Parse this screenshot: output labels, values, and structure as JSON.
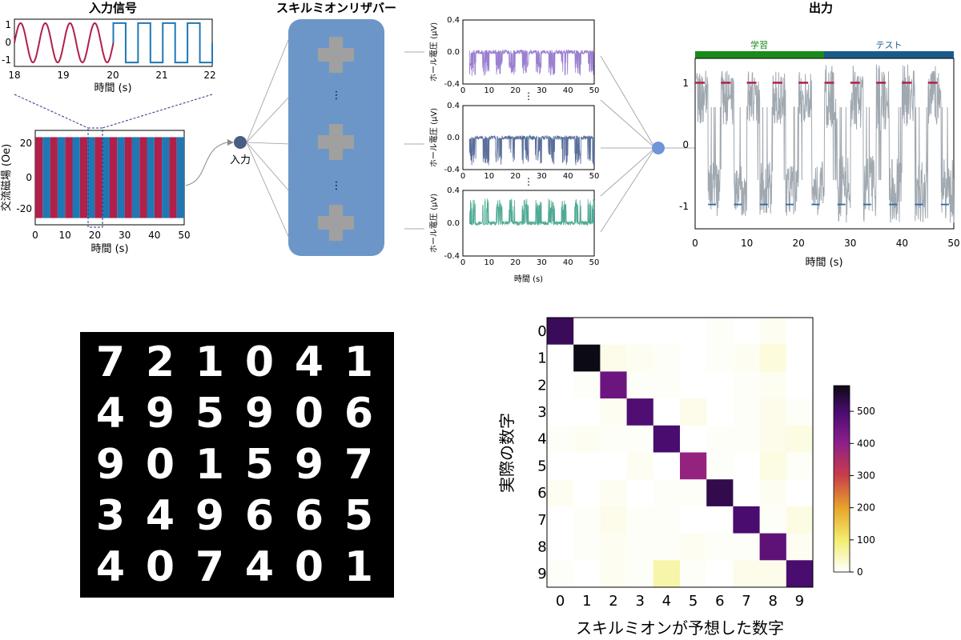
{
  "input_panel": {
    "title": "入力信号",
    "inset_yticks": [
      "1",
      "0",
      "-1"
    ],
    "inset_xticks": [
      "18",
      "19",
      "20",
      "21",
      "22"
    ],
    "inset_xlabel": "時間 (s)",
    "main_ylabel": "交流磁場 (Oe)",
    "main_yticks": [
      "20",
      "0",
      "-20"
    ],
    "main_xticks": [
      "0",
      "10",
      "20",
      "30",
      "40",
      "50"
    ],
    "main_xlabel": "時間 (s)"
  },
  "input_node_label": "入力",
  "reservoir": {
    "title": "スキルミオンリザバー",
    "dots": "⋮"
  },
  "hall_panels": {
    "ylabel": "ホール電圧 (μV)",
    "yticks": [
      "0.4",
      "0.0",
      "-0.4"
    ],
    "xticks": [
      "0",
      "10",
      "20",
      "30",
      "40",
      "50"
    ],
    "xlabel": "時間 (s)",
    "dots": "⋮",
    "colors": [
      "#9b7fd0",
      "#5a6f9b",
      "#4faa95"
    ]
  },
  "output_panel": {
    "title": "出力",
    "train_label": "学習",
    "test_label": "テスト",
    "yticks": [
      "1",
      "0",
      "-1"
    ],
    "xticks": [
      "0",
      "10",
      "20",
      "30",
      "40",
      "50"
    ],
    "xlabel": "時間 (s)",
    "colors": {
      "train_bar": "#1a8a1a",
      "test_bar": "#1a5a8a",
      "target_high": "#b0204a",
      "target_low": "#2a6aa8",
      "signal": "#a0a8b0"
    }
  },
  "mnist_digits": [
    [
      "7",
      "2",
      "1",
      "0",
      "4",
      "1"
    ],
    [
      "4",
      "9",
      "5",
      "9",
      "0",
      "6"
    ],
    [
      "9",
      "0",
      "1",
      "5",
      "9",
      "7"
    ],
    [
      "3",
      "4",
      "9",
      "6",
      "6",
      "5"
    ],
    [
      "4",
      "0",
      "7",
      "4",
      "0",
      "1"
    ]
  ],
  "colorbar": {
    "ticks": [
      "500",
      "400",
      "300",
      "200",
      "100",
      "0"
    ]
  },
  "chart_data": [
    {
      "type": "line",
      "title": "入力信号",
      "xlabel": "時間 (s)",
      "ylabel": "",
      "xlim": [
        18,
        22
      ],
      "ylim": [
        -1.2,
        1.2
      ],
      "series": [
        {
          "name": "",
          "color": "#b0204a",
          "description_values": "sine wave, period 0.5 s, from 18 to 20 s"
        },
        {
          "name": "",
          "color": "#1f78b4",
          "description_values": "square wave, period 0.5 s, from 20 to 22 s"
        }
      ]
    },
    {
      "type": "line",
      "title": "",
      "xlabel": "時間 (s)",
      "ylabel": "交流磁場 (Oe)",
      "xlim": [
        0,
        50
      ],
      "ylim": [
        -28,
        28
      ],
      "series": [
        {
          "name": "",
          "color": "#b0204a",
          "segments": [
            [
              0,
              2.5
            ],
            [
              5,
              7.5
            ],
            [
              10,
              12.5
            ],
            [
              15,
              17.5
            ],
            [
              20,
              22.5
            ],
            [
              25,
              27.5
            ],
            [
              30,
              32.5
            ],
            [
              35,
              37.5
            ],
            [
              40,
              42.5
            ],
            [
              45,
              47.5
            ]
          ]
        },
        {
          "name": "",
          "color": "#1f78b4",
          "segments": [
            [
              2.5,
              5
            ],
            [
              7.5,
              10
            ],
            [
              12.5,
              15
            ],
            [
              17.5,
              20
            ],
            [
              22.5,
              25
            ],
            [
              27.5,
              30
            ],
            [
              32.5,
              35
            ],
            [
              37.5,
              40
            ],
            [
              42.5,
              45
            ],
            [
              47.5,
              50
            ]
          ]
        }
      ],
      "amplitude": 24
    },
    {
      "type": "line",
      "title": "",
      "xlabel": "時間 (s)",
      "ylabel": "ホール電圧 (μV)",
      "xlim": [
        0,
        50
      ],
      "ylim": [
        -0.4,
        0.4
      ],
      "series": [
        {
          "name": "",
          "color": "#9b7fd0",
          "baseline": 0.0,
          "spike_direction": "down",
          "spike_amplitude": 0.3
        },
        {
          "name": "",
          "color": "#5a6f9b",
          "baseline": 0.0,
          "spike_direction": "down",
          "spike_amplitude": 0.35
        },
        {
          "name": "",
          "color": "#4faa95",
          "baseline": 0.0,
          "spike_direction": "up",
          "spike_amplitude": 0.3
        }
      ]
    },
    {
      "type": "line",
      "title": "出力",
      "xlabel": "時間 (s)",
      "ylabel": "",
      "xlim": [
        0,
        50
      ],
      "ylim": [
        -1.4,
        1.4
      ],
      "regions": [
        {
          "name": "学習",
          "x": [
            0,
            25
          ]
        },
        {
          "name": "テスト",
          "x": [
            25,
            50
          ]
        }
      ],
      "target_high_segments": [
        [
          0,
          2.5
        ],
        [
          5,
          7.5
        ],
        [
          10,
          12.5
        ],
        [
          15,
          17.5
        ],
        [
          20,
          22.5
        ],
        [
          25,
          27.5
        ],
        [
          30,
          32.5
        ],
        [
          35,
          37.5
        ],
        [
          40,
          42.5
        ],
        [
          45,
          47.5
        ]
      ],
      "target_low_segments": [
        [
          2.5,
          5
        ],
        [
          7.5,
          10
        ],
        [
          12.5,
          15
        ],
        [
          17.5,
          20
        ],
        [
          22.5,
          25
        ],
        [
          27.5,
          30
        ],
        [
          32.5,
          35
        ],
        [
          37.5,
          40
        ],
        [
          42.5,
          45
        ],
        [
          47.5,
          50
        ]
      ]
    },
    {
      "type": "heatmap",
      "title": "",
      "xlabel": "スキルミオンが予想した数字",
      "ylabel": "実際の数字",
      "x": [
        "0",
        "1",
        "2",
        "3",
        "4",
        "5",
        "6",
        "7",
        "8",
        "9"
      ],
      "y": [
        "0",
        "1",
        "2",
        "3",
        "4",
        "5",
        "6",
        "7",
        "8",
        "9"
      ],
      "zlim": [
        0,
        580
      ],
      "values": [
        [
          520,
          0,
          0,
          0,
          0,
          0,
          5,
          0,
          10,
          0
        ],
        [
          0,
          580,
          15,
          10,
          5,
          0,
          5,
          10,
          25,
          0
        ],
        [
          0,
          5,
          450,
          5,
          5,
          0,
          0,
          5,
          10,
          0
        ],
        [
          0,
          0,
          10,
          490,
          0,
          15,
          0,
          5,
          15,
          5
        ],
        [
          5,
          10,
          5,
          5,
          500,
          0,
          5,
          5,
          15,
          20
        ],
        [
          0,
          0,
          0,
          10,
          0,
          390,
          5,
          0,
          20,
          5
        ],
        [
          10,
          0,
          10,
          0,
          5,
          5,
          530,
          0,
          10,
          0
        ],
        [
          0,
          5,
          15,
          5,
          5,
          0,
          0,
          500,
          5,
          20
        ],
        [
          0,
          5,
          10,
          5,
          5,
          10,
          5,
          5,
          470,
          10
        ],
        [
          5,
          0,
          10,
          5,
          60,
          5,
          0,
          15,
          15,
          500
        ]
      ]
    }
  ]
}
